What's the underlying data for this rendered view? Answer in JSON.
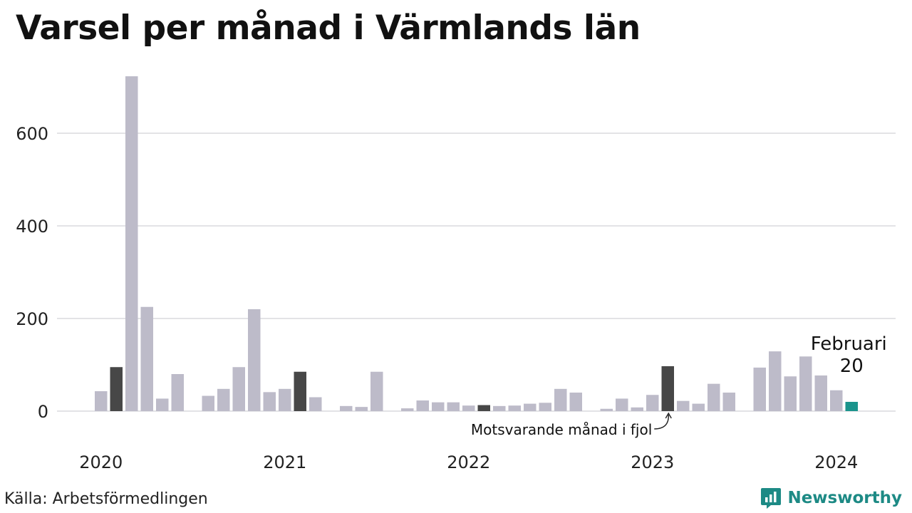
{
  "title": "Varsel per månad i Värmlands län",
  "source": "Källa: Arbetsförmedlingen",
  "brand": {
    "name": "Newsworthy",
    "icon": "newsworthy-logo-icon"
  },
  "colors": {
    "bar": "#bdbbc9",
    "same_month": "#474747",
    "current": "#1a948c",
    "grid": "#e3e3e6",
    "brand": "#1d8a85"
  },
  "chart_data": {
    "type": "bar",
    "title": "Varsel per månad i Värmlands län",
    "xlabel": "",
    "ylabel": "",
    "ylim": [
      0,
      720
    ],
    "yticks": [
      0,
      200,
      400,
      600
    ],
    "grid": true,
    "x_tick_labels": [
      "2020",
      "2021",
      "2022",
      "2023",
      "2024"
    ],
    "categories": [
      "2020-01",
      "2020-02",
      "2020-03",
      "2020-04",
      "2020-05",
      "2020-06",
      "2020-07",
      "2020-08",
      "2020-09",
      "2020-10",
      "2020-11",
      "2020-12",
      "2021-01",
      "2021-02",
      "2021-03",
      "2021-04",
      "2021-05",
      "2021-06",
      "2021-07",
      "2021-08",
      "2021-09",
      "2021-10",
      "2021-11",
      "2021-12",
      "2022-01",
      "2022-02",
      "2022-03",
      "2022-04",
      "2022-05",
      "2022-06",
      "2022-07",
      "2022-08",
      "2022-09",
      "2022-10",
      "2022-11",
      "2022-12",
      "2023-01",
      "2023-02",
      "2023-03",
      "2023-04",
      "2023-05",
      "2023-06",
      "2023-07",
      "2023-08",
      "2023-09",
      "2023-10",
      "2023-11",
      "2023-12",
      "2024-01",
      "2024-02"
    ],
    "values": [
      43,
      95,
      723,
      225,
      27,
      80,
      0,
      33,
      48,
      95,
      220,
      41,
      48,
      85,
      30,
      0,
      11,
      9,
      85,
      0,
      6,
      23,
      19,
      19,
      12,
      13,
      11,
      12,
      16,
      18,
      48,
      40,
      0,
      5,
      27,
      8,
      35,
      97,
      22,
      16,
      59,
      40,
      0,
      94,
      129,
      75,
      118,
      77,
      45,
      20
    ],
    "highlight_same_month_indices": [
      1,
      13,
      25,
      37
    ],
    "current_index": 49,
    "annotations": {
      "current_month": "Februari",
      "current_value": "20",
      "same_month_note": "Motsvarande månad i fjol"
    }
  }
}
